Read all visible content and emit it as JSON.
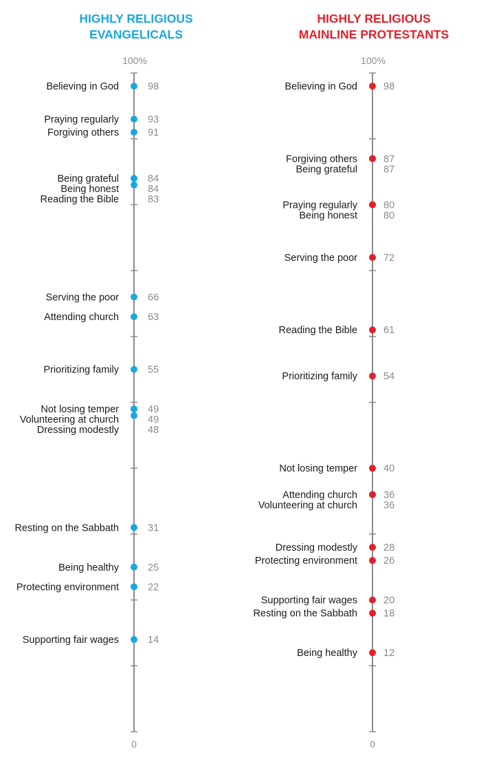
{
  "chart_data": [
    {
      "type": "scatter",
      "title_line1": "HIGHLY RELIGIOUS",
      "title_line2": "EVANGELICALS",
      "color": "#1aa7e0",
      "top_label": "100%",
      "bottom_label": "0",
      "ylim": [
        0,
        100
      ],
      "points": [
        {
          "label": "Believing in God",
          "value": 98
        },
        {
          "label": "Praying regularly",
          "value": 93
        },
        {
          "label": "Forgiving others",
          "value": 91
        },
        {
          "label": "Being grateful",
          "value": 84
        },
        {
          "label": "Being honest",
          "value": 84
        },
        {
          "label": "Reading the Bible",
          "value": 83
        },
        {
          "label": "Serving the poor",
          "value": 66
        },
        {
          "label": "Attending church",
          "value": 63
        },
        {
          "label": "Prioritizing family",
          "value": 55
        },
        {
          "label": "Not losing temper",
          "value": 49
        },
        {
          "label": "Volunteering at church",
          "value": 49
        },
        {
          "label": "Dressing modestly",
          "value": 48
        },
        {
          "label": "Resting on the Sabbath",
          "value": 31
        },
        {
          "label": "Being healthy",
          "value": 25
        },
        {
          "label": "Protecting environment",
          "value": 22
        },
        {
          "label": "Supporting fair wages",
          "value": 14
        }
      ]
    },
    {
      "type": "scatter",
      "title_line1": "HIGHLY RELIGIOUS",
      "title_line2": "MAINLINE PROTESTANTS",
      "color": "#e3202b",
      "top_label": "100%",
      "bottom_label": "0",
      "ylim": [
        0,
        100
      ],
      "points": [
        {
          "label": "Believing in God",
          "value": 98
        },
        {
          "label": "Forgiving others",
          "value": 87
        },
        {
          "label": "Being grateful",
          "value": 87
        },
        {
          "label": "Praying regularly",
          "value": 80
        },
        {
          "label": "Being honest",
          "value": 80
        },
        {
          "label": "Serving the poor",
          "value": 72
        },
        {
          "label": "Reading the Bible",
          "value": 61
        },
        {
          "label": "Prioritizing family",
          "value": 54
        },
        {
          "label": "Not losing temper",
          "value": 40
        },
        {
          "label": "Attending church",
          "value": 36
        },
        {
          "label": "Volunteering at church",
          "value": 36
        },
        {
          "label": "Dressing modestly",
          "value": 28
        },
        {
          "label": "Protecting environment",
          "value": 26
        },
        {
          "label": "Supporting fair wages",
          "value": 20
        },
        {
          "label": "Resting on the Sabbath",
          "value": 18
        },
        {
          "label": "Being healthy",
          "value": 12
        }
      ]
    }
  ]
}
